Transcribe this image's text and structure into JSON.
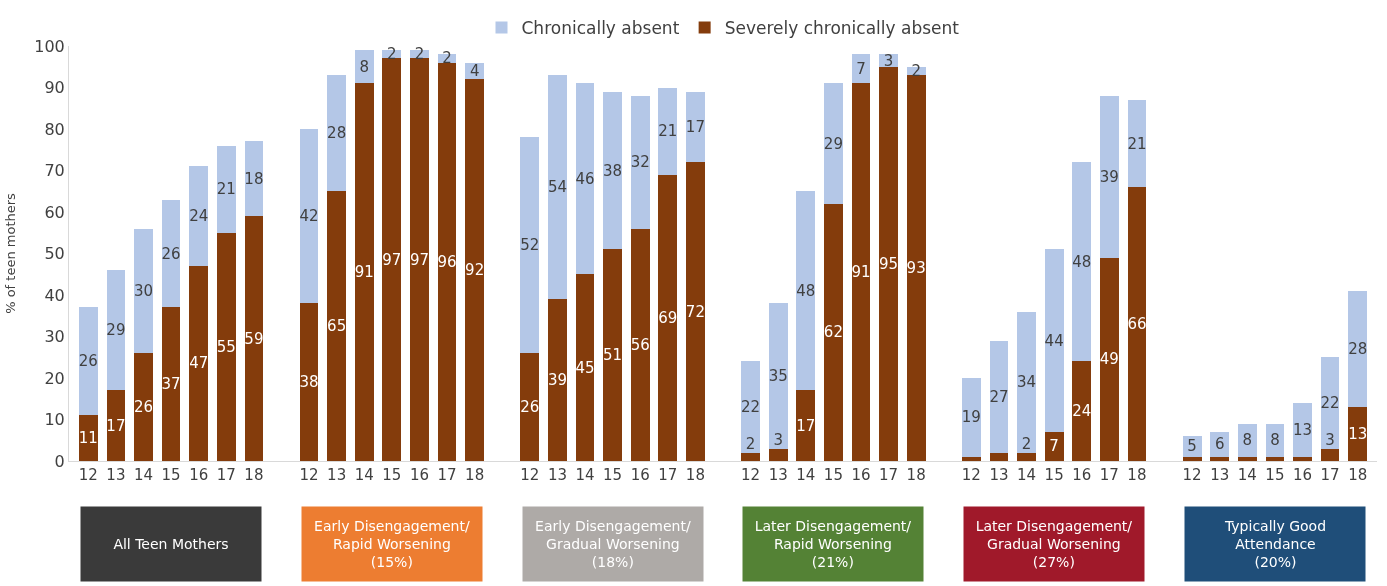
{
  "chart_data": {
    "type": "bar",
    "stacked": true,
    "ylabel": "% of teen mothers",
    "categories": [
      "12",
      "13",
      "14",
      "15",
      "16",
      "17",
      "18",
      null,
      "12",
      "13",
      "14",
      "15",
      "16",
      "17",
      "18",
      null,
      "12",
      "13",
      "14",
      "15",
      "16",
      "17",
      "18",
      null,
      "12",
      "13",
      "14",
      "15",
      "16",
      "17",
      "18",
      null,
      "12",
      "13",
      "14",
      "15",
      "16",
      "17",
      "18",
      null,
      "12",
      "13",
      "14",
      "15",
      "16",
      "17",
      "18"
    ],
    "series": [
      {
        "name": "Severely chronically absent",
        "color": "#843c0c",
        "values": [
          11,
          17,
          26,
          37,
          47,
          55,
          59,
          null,
          38,
          65,
          91,
          97,
          97,
          96,
          92,
          null,
          26,
          39,
          45,
          51,
          56,
          69,
          72,
          null,
          2,
          3,
          17,
          62,
          91,
          95,
          93,
          null,
          1,
          2,
          2,
          7,
          24,
          49,
          66,
          null,
          1,
          1,
          1,
          1,
          1,
          3,
          13
        ],
        "value_labels": [
          "11",
          "17",
          "26",
          "37",
          "47",
          "55",
          "59",
          null,
          "38",
          "65",
          "91",
          "97",
          "97",
          "96",
          "92",
          null,
          "26",
          "39",
          "45",
          "51",
          "56",
          "69",
          "72",
          null,
          "2",
          "3",
          "17",
          "62",
          "91",
          "95",
          "93",
          null,
          null,
          null,
          "2",
          "7",
          "24",
          "49",
          "66",
          null,
          null,
          null,
          null,
          null,
          null,
          "3",
          "13"
        ]
      },
      {
        "name": "Chronically absent",
        "color": "#b4c7e7",
        "values": [
          26,
          29,
          30,
          26,
          24,
          21,
          18,
          null,
          42,
          28,
          8,
          2,
          2,
          2,
          4,
          null,
          52,
          54,
          46,
          38,
          32,
          21,
          17,
          null,
          22,
          35,
          48,
          29,
          7,
          3,
          2,
          null,
          19,
          27,
          34,
          44,
          48,
          39,
          21,
          null,
          5,
          6,
          8,
          8,
          13,
          22,
          28
        ],
        "value_labels": [
          "26",
          "29",
          "30",
          "26",
          "24",
          "21",
          "18",
          null,
          "42",
          "28",
          "8",
          "2",
          "2",
          "2",
          "4",
          null,
          "52",
          "54",
          "46",
          "38",
          "32",
          "21",
          "17",
          null,
          "22",
          "35",
          "48",
          "29",
          "7",
          "3",
          "2",
          null,
          "19",
          "27",
          "34",
          "44",
          "48",
          "39",
          "21",
          null,
          "5",
          "6",
          "8",
          "8",
          "13",
          "22",
          "28"
        ]
      }
    ],
    "ylim": [
      0,
      100
    ],
    "yticks": [
      0,
      10,
      20,
      30,
      40,
      50,
      60,
      70,
      80,
      90,
      100
    ],
    "legend": "top",
    "annotations": [
      "All Teen Mothers",
      "Early Disengagement/\nRapid Worsening\n(15%)",
      "Early Disengagement/\nGradual Worsening\n(18%)",
      "Later Disengagement/\nRapid Worsening\n(21%)",
      "Later Disengagement/\nGradual Worsening\n(27%)",
      "Typically Good\nAttendance\n(20%)"
    ]
  }
}
